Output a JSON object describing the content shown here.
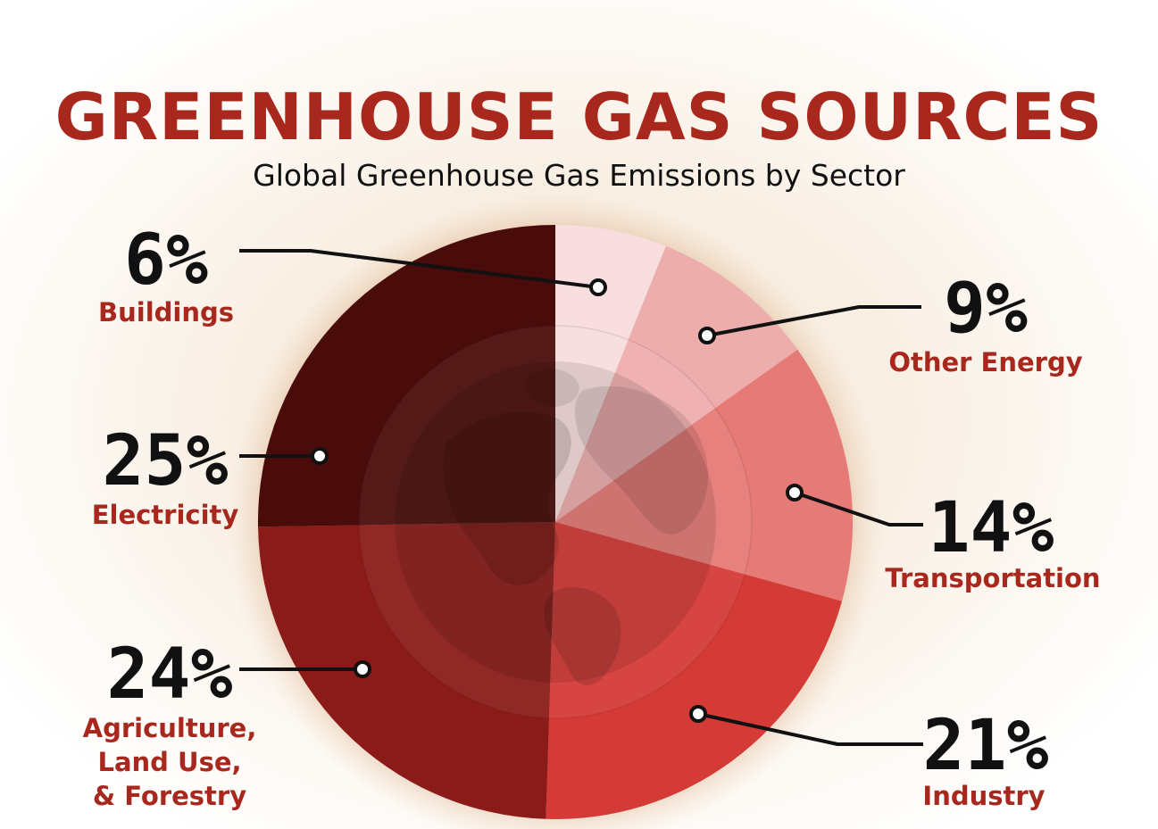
{
  "title": "GREENHOUSE GAS SOURCES",
  "subtitle": "Global Greenhouse Gas Emissions by Sector",
  "chart_data": {
    "type": "pie",
    "title": "GREENHOUSE GAS SOURCES",
    "subtitle": "Global Greenhouse Gas Emissions by Sector",
    "slices": [
      {
        "label_lines": [
          "Buildings"
        ],
        "value": 6,
        "value_label": "6%",
        "color": "#f8dede"
      },
      {
        "label_lines": [
          "Other Energy"
        ],
        "value": 9,
        "value_label": "9%",
        "color": "#eeadad"
      },
      {
        "label_lines": [
          "Transportation"
        ],
        "value": 14,
        "value_label": "14%",
        "color": "#e67a76"
      },
      {
        "label_lines": [
          "Industry"
        ],
        "value": 21,
        "value_label": "21%",
        "color": "#d43a36"
      },
      {
        "label_lines": [
          "Agriculture,",
          "Land Use,",
          "& Forestry"
        ],
        "value": 24,
        "value_label": "24%",
        "color": "#8a1b18"
      },
      {
        "label_lines": [
          "Electricity"
        ],
        "value": 25,
        "value_label": "25%",
        "color": "#4a0c0a"
      }
    ],
    "start_angle_deg": 0,
    "direction": "clockwise"
  }
}
